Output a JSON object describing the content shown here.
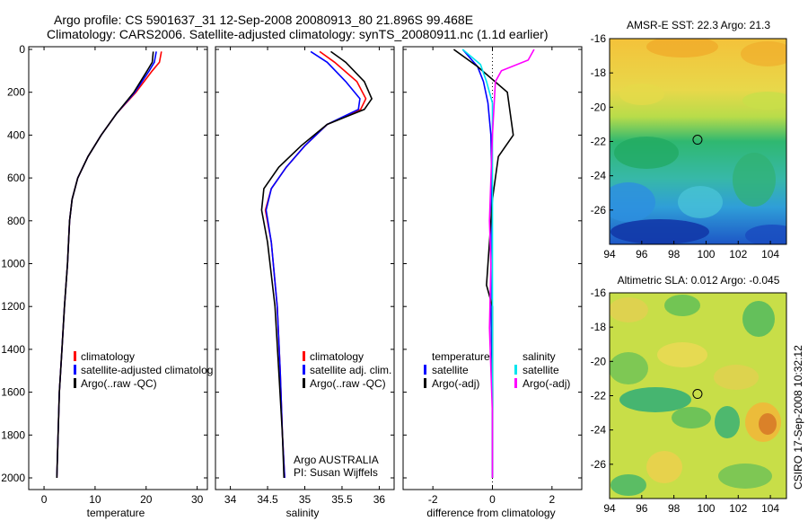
{
  "header": {
    "line1": "Argo profile: CS 5901637_31 12-Sep-2008 20080913_80 21.896S 99.468E",
    "line2": "Climatology: CARS2006. Satellite-adjusted climatology: synTS_20080911.nc (1.1d earlier)"
  },
  "side_label": "CSIRO 17-Sep-2008 10:32:12",
  "colors": {
    "climatology": "#ff0000",
    "satellite": "#0000ff",
    "argo": "#000000",
    "sal_satellite": "#00e5ee",
    "sal_argo": "#ff00ff"
  },
  "chart_data": [
    {
      "type": "line",
      "xlabel": "temperature",
      "ylabel": "",
      "xlim": [
        -3,
        32
      ],
      "ylim": [
        2080,
        0
      ],
      "xticks": [
        0,
        10,
        20,
        30
      ],
      "yticks": [
        0,
        200,
        400,
        600,
        800,
        1000,
        1200,
        1400,
        1600,
        1800,
        2000
      ],
      "legend": {
        "position": "lower-middle",
        "entries": [
          {
            "label": "climatology",
            "color": "#ff0000"
          },
          {
            "label": "satellite-adjusted climatolog",
            "color": "#0000ff"
          },
          {
            "label": "Argo(..raw -QC)",
            "color": "#000000"
          }
        ]
      },
      "series": [
        {
          "name": "climatology",
          "color": "#ff0000",
          "x": [
            23,
            22.6,
            21.2,
            18,
            14.2,
            11.2,
            8.6,
            6.6,
            5.5,
            5,
            4.6,
            4,
            3.5,
            3,
            2.5
          ],
          "y": [
            10,
            60,
            100,
            200,
            300,
            400,
            500,
            600,
            700,
            800,
            1000,
            1200,
            1400,
            1600,
            2000
          ]
        },
        {
          "name": "satellite-adjusted climatology",
          "color": "#0000ff",
          "x": [
            22,
            21.6,
            20.6,
            17.8,
            14.2,
            11.2,
            8.6,
            6.6,
            5.5,
            5,
            4.6,
            4,
            3.5,
            3,
            2.5
          ],
          "y": [
            10,
            60,
            100,
            200,
            300,
            400,
            500,
            600,
            700,
            800,
            1000,
            1200,
            1400,
            1600,
            2000
          ]
        },
        {
          "name": "Argo(..raw -QC)",
          "color": "#000000",
          "x": [
            21.4,
            21.2,
            20.2,
            17.6,
            14.2,
            11.2,
            8.6,
            6.6,
            5.5,
            5,
            4.6,
            4,
            3.5,
            3,
            2.5
          ],
          "y": [
            10,
            60,
            100,
            200,
            300,
            400,
            500,
            600,
            700,
            800,
            1000,
            1200,
            1400,
            1600,
            2000
          ]
        }
      ]
    },
    {
      "type": "line",
      "xlabel": "salinity",
      "xlim": [
        33.8,
        36.2
      ],
      "ylim": [
        2080,
        0
      ],
      "xticks": [
        34,
        34.5,
        35,
        35.5,
        36
      ],
      "xticklabels": [
        "34",
        "34.5",
        "35",
        "35.5",
        "36"
      ],
      "legend": {
        "position": "lower-middle",
        "entries": [
          {
            "label": "climatology",
            "color": "#ff0000"
          },
          {
            "label": "satellite adj. clim.",
            "color": "#0000ff"
          },
          {
            "label": "Argo(..raw -QC)",
            "color": "#000000"
          }
        ]
      },
      "annotation": [
        "Argo AUSTRALIA",
        "PI: Susan Wijffels"
      ],
      "series": [
        {
          "name": "climatology",
          "color": "#ff0000",
          "x": [
            35.2,
            35.4,
            35.7,
            35.82,
            35.75,
            35.3,
            35.0,
            34.75,
            34.55,
            34.47,
            34.55,
            34.63,
            34.67,
            34.7,
            34.73
          ],
          "y": [
            10,
            60,
            150,
            230,
            280,
            350,
            450,
            550,
            650,
            750,
            900,
            1200,
            1500,
            1800,
            2000
          ]
        },
        {
          "name": "satellite adj. clim.",
          "color": "#0000ff",
          "x": [
            35.08,
            35.3,
            35.55,
            35.74,
            35.72,
            35.3,
            35.0,
            34.75,
            34.55,
            34.48,
            34.55,
            34.63,
            34.67,
            34.7,
            34.73
          ],
          "y": [
            10,
            60,
            150,
            230,
            280,
            350,
            450,
            550,
            650,
            750,
            900,
            1200,
            1500,
            1800,
            2000
          ]
        },
        {
          "name": "Argo(..raw -QC)",
          "color": "#000000",
          "x": [
            35.35,
            35.55,
            35.8,
            35.9,
            35.8,
            35.3,
            34.95,
            34.65,
            34.45,
            34.42,
            34.5,
            34.6,
            34.65,
            34.7,
            34.72
          ],
          "y": [
            10,
            60,
            150,
            230,
            280,
            350,
            450,
            550,
            650,
            750,
            900,
            1200,
            1500,
            1800,
            2000
          ]
        }
      ]
    },
    {
      "type": "line",
      "xlabel": "difference from climatology",
      "xlim": [
        -3,
        3
      ],
      "ylim": [
        2080,
        0
      ],
      "xticks": [
        -2,
        0,
        2
      ],
      "legend": {
        "position": "lower-middle",
        "groups": [
          {
            "title": "temperature",
            "entries": [
              {
                "label": "satellite",
                "color": "#0000ff"
              },
              {
                "label": "Argo(-adj)",
                "color": "#000000"
              }
            ]
          },
          {
            "title": "salinity",
            "entries": [
              {
                "label": "satellite",
                "color": "#00e5ee"
              },
              {
                "label": "Argo(-adj)",
                "color": "#ff00ff"
              }
            ]
          }
        ]
      },
      "series": [
        {
          "name": "temperature satellite",
          "color": "#0000ff",
          "x": [
            -1,
            -0.5,
            -0.3,
            -0.15,
            -0.05,
            -0.02,
            -0.05,
            -0.05,
            0,
            0
          ],
          "y": [
            0,
            80,
            150,
            250,
            400,
            600,
            900,
            1200,
            1600,
            2000
          ]
        },
        {
          "name": "temperature Argo(-adj)",
          "color": "#000000",
          "x": [
            -1.3,
            -0.5,
            0.5,
            0.7,
            0.2,
            0,
            -0.1,
            -0.2,
            0,
            0,
            0
          ],
          "y": [
            0,
            80,
            200,
            400,
            500,
            700,
            900,
            1100,
            1200,
            1600,
            2000
          ]
        },
        {
          "name": "salinity satellite",
          "color": "#00e5ee",
          "x": [
            -1,
            -0.4,
            -0.2,
            0,
            0,
            0,
            0
          ],
          "y": [
            0,
            70,
            150,
            250,
            600,
            1200,
            2000
          ]
        },
        {
          "name": "salinity Argo(-adj)",
          "color": "#ff00ff",
          "x": [
            1.4,
            1.2,
            0.3,
            0.1,
            0,
            -0.1,
            -0.05,
            -0.1,
            0,
            0
          ],
          "y": [
            0,
            50,
            100,
            150,
            400,
            800,
            1000,
            1300,
            1700,
            2000
          ]
        }
      ]
    },
    {
      "type": "heatmap",
      "title": "AMSR-E SST: 22.3 Argo: 21.3",
      "xlim": [
        94,
        105
      ],
      "ylim": [
        -28,
        -16
      ],
      "xticks": [
        94,
        96,
        98,
        100,
        102,
        104
      ],
      "yticks": [
        -16,
        -18,
        -20,
        -22,
        -24,
        -26
      ],
      "marker": {
        "lon": 99.468,
        "lat": -21.896
      }
    },
    {
      "type": "heatmap",
      "title": "Altimetric SLA: 0.012 Argo: -0.045",
      "xlim": [
        94,
        105
      ],
      "ylim": [
        -28,
        -16
      ],
      "xticks": [
        94,
        96,
        98,
        100,
        102,
        104
      ],
      "yticks": [
        -16,
        -18,
        -20,
        -22,
        -24,
        -26
      ],
      "marker": {
        "lon": 99.468,
        "lat": -21.896
      }
    }
  ]
}
